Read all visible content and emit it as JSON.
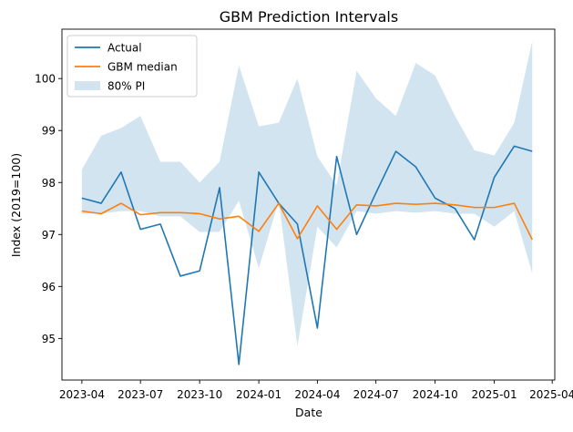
{
  "chart_data": {
    "type": "line",
    "title": "GBM Prediction Intervals",
    "xlabel": "Date",
    "ylabel": "Index (2019=100)",
    "xlim": [
      "2023-03-01",
      "2025-04-05"
    ],
    "ylim": [
      94.2,
      100.95
    ],
    "xticks": [
      {
        "date": "2023-04-01",
        "label": "2023-04"
      },
      {
        "date": "2023-07-01",
        "label": "2023-07"
      },
      {
        "date": "2023-10-01",
        "label": "2023-10"
      },
      {
        "date": "2024-01-01",
        "label": "2024-01"
      },
      {
        "date": "2024-04-01",
        "label": "2024-04"
      },
      {
        "date": "2024-07-01",
        "label": "2024-07"
      },
      {
        "date": "2024-10-01",
        "label": "2024-10"
      },
      {
        "date": "2025-01-01",
        "label": "2025-01"
      },
      {
        "date": "2025-04-01",
        "label": "2025-04"
      }
    ],
    "yticks": [
      95,
      96,
      97,
      98,
      99,
      100
    ],
    "legend_position": "top-left",
    "x": [
      "2023-04-01",
      "2023-05-01",
      "2023-06-01",
      "2023-07-01",
      "2023-08-01",
      "2023-09-01",
      "2023-10-01",
      "2023-11-01",
      "2023-12-01",
      "2024-01-01",
      "2024-02-01",
      "2024-03-01",
      "2024-04-01",
      "2024-05-01",
      "2024-06-01",
      "2024-07-01",
      "2024-08-01",
      "2024-09-01",
      "2024-10-01",
      "2024-11-01",
      "2024-12-01",
      "2025-01-01",
      "2025-02-01",
      "2025-03-01"
    ],
    "series": [
      {
        "name": "Actual",
        "kind": "line",
        "color": "#1f77b4",
        "values": [
          97.7,
          97.6,
          98.2,
          97.1,
          97.2,
          96.2,
          96.3,
          97.9,
          94.5,
          98.2,
          97.6,
          97.2,
          95.2,
          98.5,
          97.0,
          97.8,
          98.6,
          98.3,
          97.7,
          97.5,
          96.9,
          98.1,
          98.7,
          98.6
        ]
      },
      {
        "name": "GBM median",
        "kind": "line",
        "color": "#ff7f0e",
        "values": [
          97.45,
          97.4,
          97.6,
          97.38,
          97.42,
          97.42,
          97.4,
          97.3,
          97.35,
          97.06,
          97.6,
          96.92,
          97.55,
          97.1,
          97.57,
          97.55,
          97.6,
          97.58,
          97.6,
          97.57,
          97.52,
          97.52,
          97.6,
          96.9
        ]
      },
      {
        "name": "80% PI",
        "kind": "band",
        "color": "#1f77b4",
        "opacity": 0.2,
        "lower": [
          97.4,
          97.4,
          97.45,
          97.45,
          97.35,
          97.35,
          97.05,
          97.05,
          97.65,
          96.35,
          97.65,
          94.85,
          97.15,
          96.75,
          97.45,
          97.4,
          97.45,
          97.42,
          97.45,
          97.4,
          97.4,
          97.15,
          97.45,
          96.25
        ],
        "upper": [
          98.25,
          98.9,
          99.05,
          99.28,
          98.4,
          98.4,
          98.0,
          98.4,
          100.25,
          99.08,
          99.15,
          100.0,
          98.5,
          97.95,
          100.15,
          99.62,
          99.28,
          100.3,
          100.06,
          99.28,
          98.62,
          98.52,
          99.15,
          100.72
        ]
      }
    ]
  }
}
